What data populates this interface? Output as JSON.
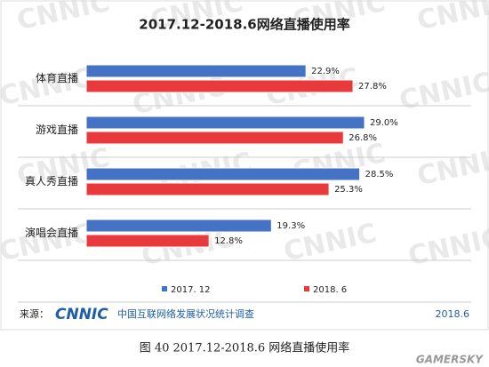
{
  "chart_data": {
    "type": "hbar",
    "title": "2017.12-2018.6网络直播使用率",
    "categories": [
      "体育直播",
      "游戏直播",
      "真人秀直播",
      "演唱会直播"
    ],
    "series": [
      {
        "name": "2017. 12",
        "color": "#4472c4",
        "values": [
          22.9,
          29.0,
          28.5,
          19.3
        ],
        "value_labels": [
          "22.9%",
          "29.0%",
          "28.5%",
          "19.3%"
        ]
      },
      {
        "name": "2018. 6",
        "color": "#e8393d",
        "values": [
          27.8,
          26.8,
          25.3,
          12.8
        ],
        "value_labels": [
          "27.8%",
          "26.8%",
          "25.3%",
          "12.8%"
        ]
      }
    ],
    "watermark": "CNNIC",
    "source_label": "来源：",
    "source_logo": "CNNIC",
    "source_text": "中国互联网络发展状况统计调查",
    "source_date": "2018.6",
    "caption": "图 40   2017.12-2018.6 网络直播使用率",
    "site_watermark": "GAMERSKY"
  }
}
